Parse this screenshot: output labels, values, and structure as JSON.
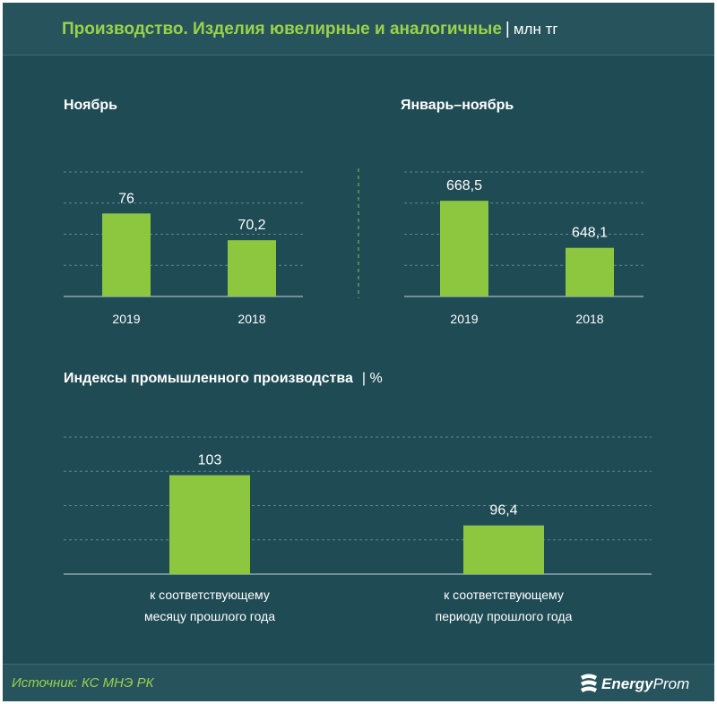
{
  "header": {
    "title": "Производство. Изделия ювелирные и аналогичные",
    "separator": "|",
    "unit": "млн тг"
  },
  "footer": {
    "source": "Источник: КС МНЭ РК",
    "brand_bold": "Energy",
    "brand_light": "Prom"
  },
  "colors": {
    "background": "#1f4b55",
    "bar": "#8dc63f",
    "accent_text": "#9ad24a",
    "grid": "#5f8790"
  },
  "chart_data": [
    {
      "type": "bar",
      "title": "Ноябрь",
      "categories": [
        "2019",
        "2018"
      ],
      "values": [
        76,
        70.2
      ],
      "value_labels": [
        "76",
        "70,2"
      ],
      "ylim": [
        58,
        85
      ]
    },
    {
      "type": "bar",
      "title": "Январь–ноябрь",
      "categories": [
        "2019",
        "2018"
      ],
      "values": [
        668.5,
        648.1
      ],
      "value_labels": [
        "668,5",
        "648,1"
      ],
      "ylim": [
        627,
        681
      ]
    },
    {
      "type": "bar",
      "title": "Индексы промышленного производства",
      "unit": "| %",
      "categories": [
        [
          "к соответствующему",
          "месяцу прошлого года"
        ],
        [
          "к соответствующему",
          "периоду прошлого года"
        ]
      ],
      "values": [
        103,
        96.4
      ],
      "value_labels": [
        "103",
        "96,4"
      ],
      "ylim": [
        90,
        108
      ]
    }
  ]
}
